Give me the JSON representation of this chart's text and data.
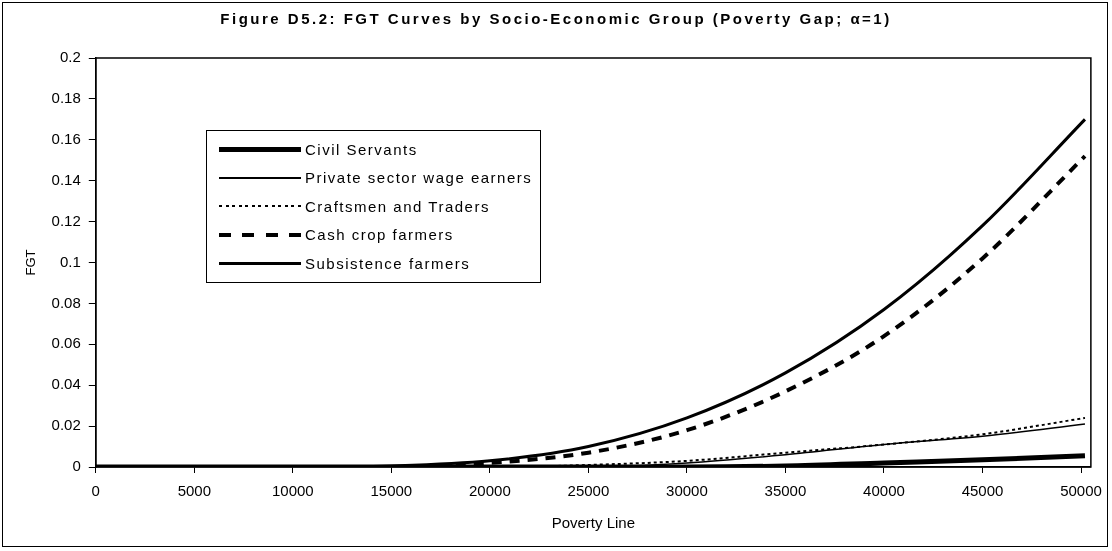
{
  "chart_data": {
    "type": "line",
    "title": "Figure  D5.2: FGT Curves by Socio-Economic Group (Poverty Gap;  α=1)",
    "xlabel": "Poverty Line",
    "ylabel": "FGT",
    "x": [
      0,
      5000,
      10000,
      15000,
      20000,
      25000,
      30000,
      35000,
      40000,
      45000,
      50200
    ],
    "series": [
      {
        "name": "Civil Servants",
        "color": "#000000",
        "line_style": "solid",
        "values": [
          0,
          0,
          0,
          0,
          0,
          0,
          0,
          0.0005,
          0.002,
          0.0035,
          0.0055
        ]
      },
      {
        "name": "Private sector wage earners",
        "color": "#000000",
        "line_style": "solid",
        "values": [
          0,
          0,
          0,
          0,
          0,
          0,
          0.002,
          0.006,
          0.011,
          0.015,
          0.021
        ]
      },
      {
        "name": "Craftsmen and Traders",
        "color": "#000000",
        "line_style": "dotted",
        "values": [
          0,
          0,
          0,
          0,
          0,
          0.001,
          0.003,
          0.007,
          0.011,
          0.016,
          0.024
        ]
      },
      {
        "name": "Cash crop farmers",
        "color": "#000000",
        "line_style": "dashed",
        "values": [
          0,
          0,
          0,
          0,
          0.002,
          0.007,
          0.018,
          0.037,
          0.064,
          0.102,
          0.152
        ]
      },
      {
        "name": "Subsistence farmers",
        "color": "#000000",
        "line_style": "solid",
        "values": [
          0,
          0,
          0,
          0.0005,
          0.003,
          0.01,
          0.024,
          0.046,
          0.077,
          0.118,
          0.17
        ]
      }
    ],
    "xlim": [
      0,
      50500
    ],
    "xticks": [
      0,
      5000,
      10000,
      15000,
      20000,
      25000,
      30000,
      35000,
      40000,
      45000,
      50000
    ],
    "ylim": [
      0,
      0.2
    ],
    "yticks": [
      0,
      0.02,
      0.04,
      0.06,
      0.08,
      0.1,
      0.12,
      0.14,
      0.16,
      0.18,
      0.2
    ],
    "grid": false,
    "legend": "top left",
    "marker": "none"
  }
}
